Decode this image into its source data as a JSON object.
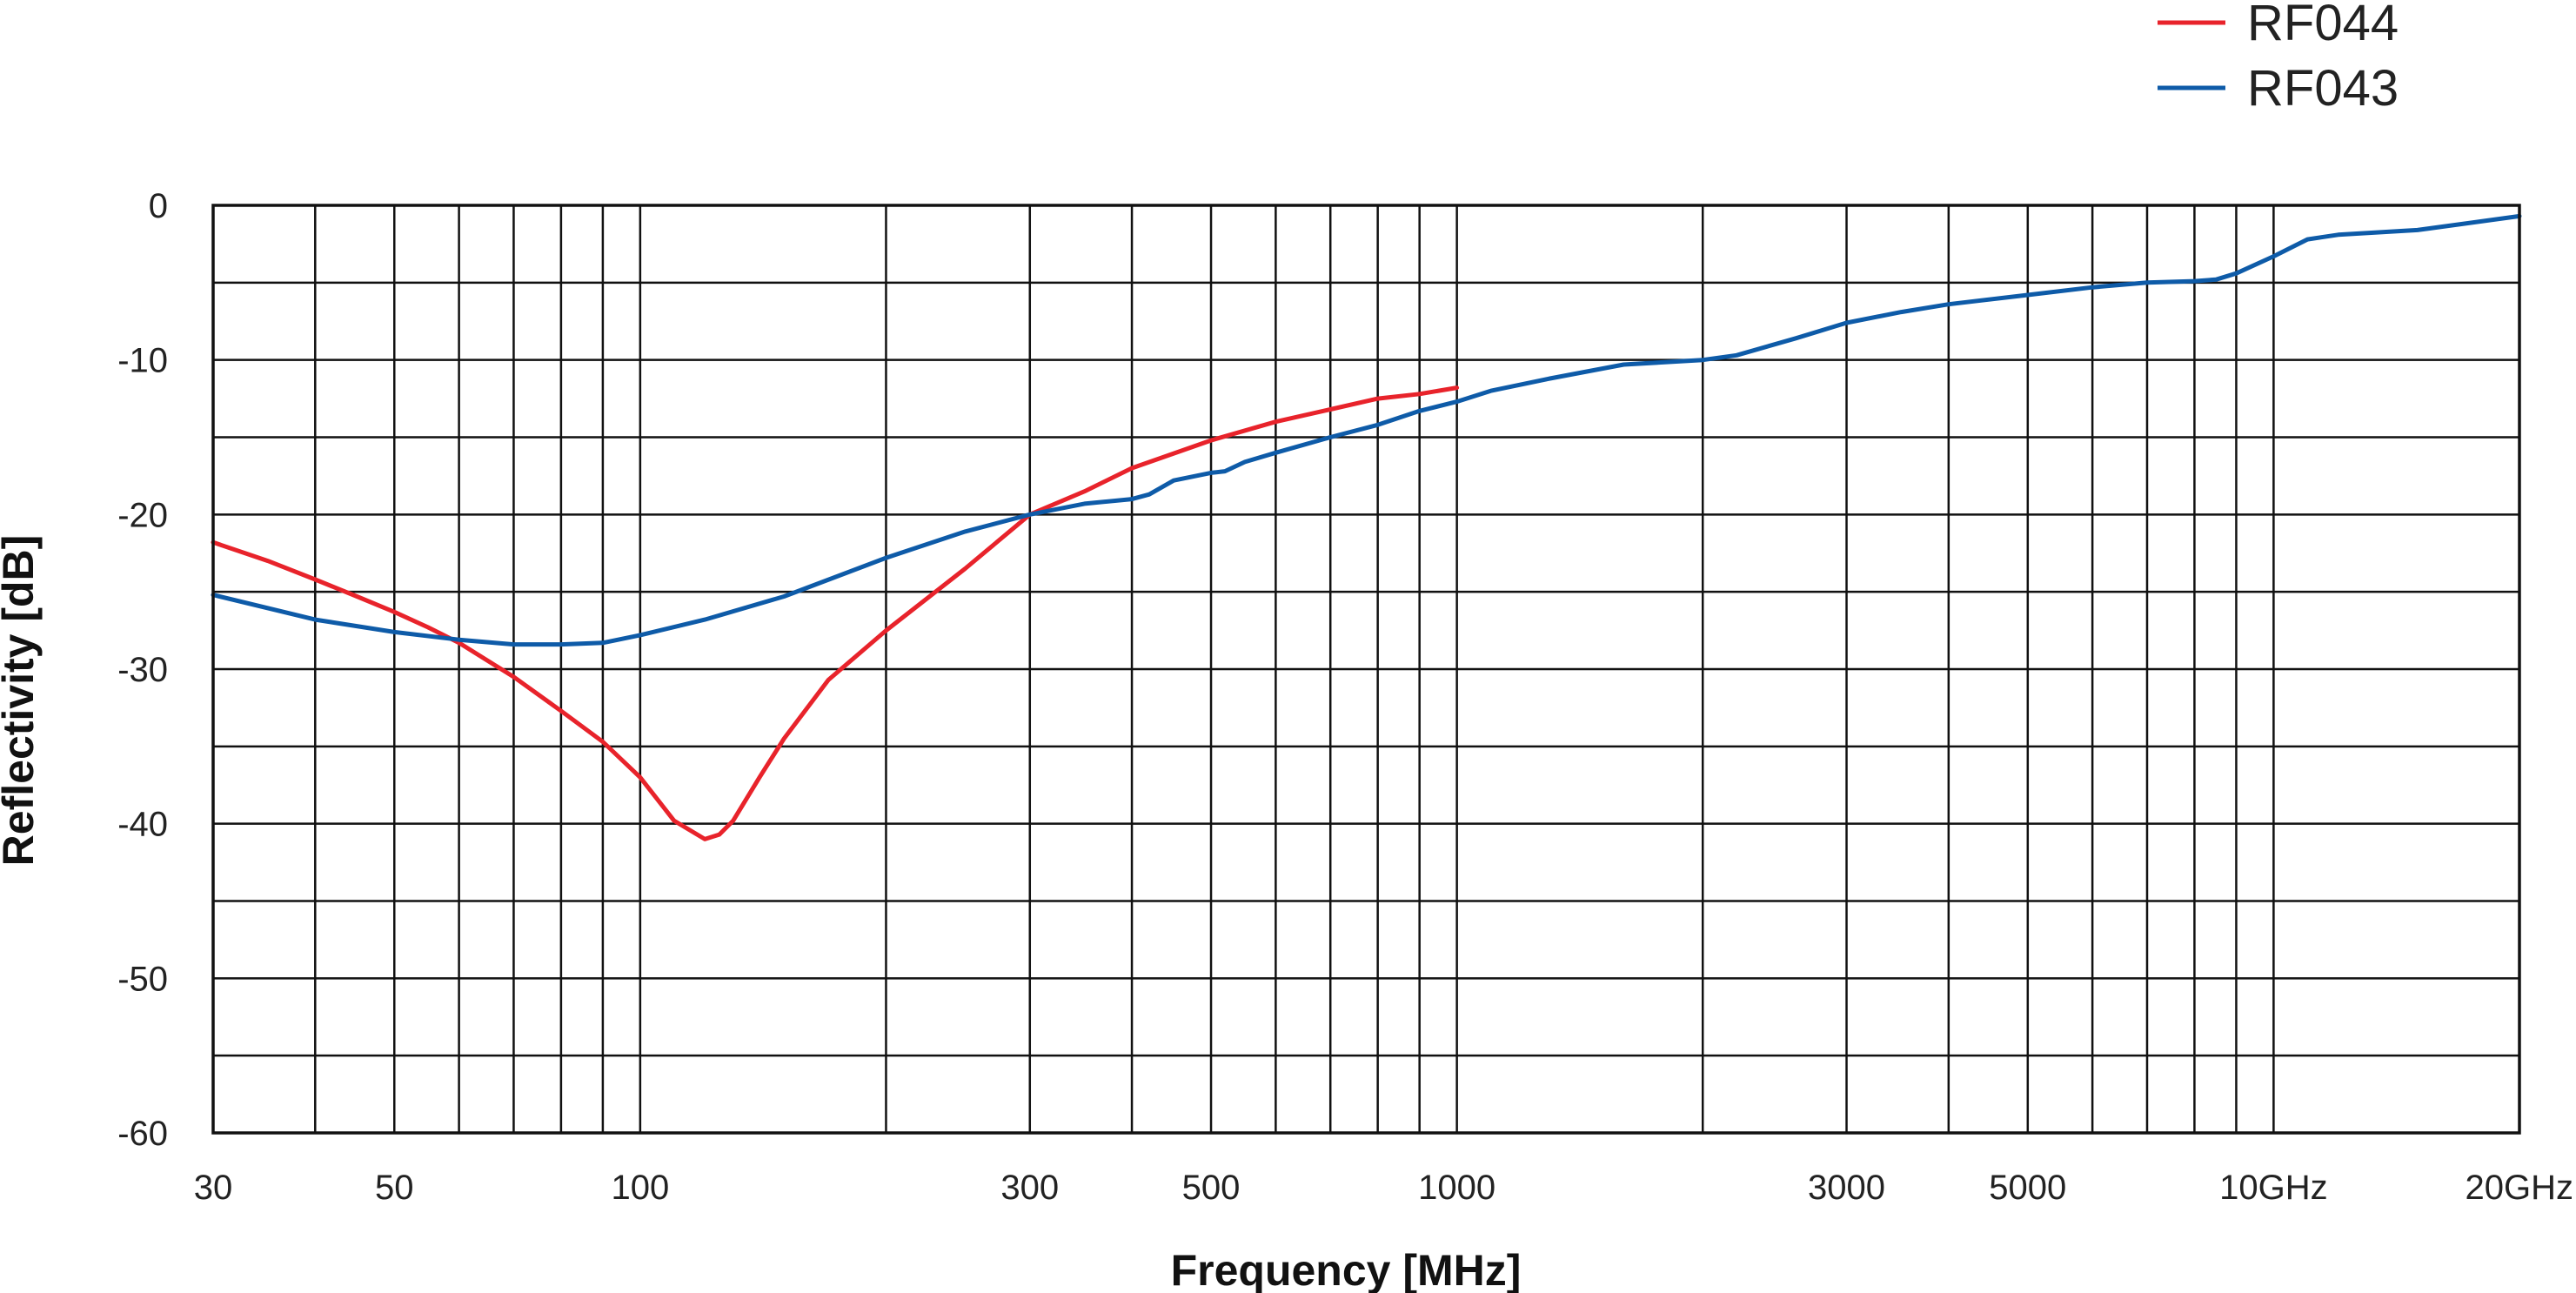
{
  "chart_data": {
    "type": "line",
    "xlabel": "Frequency [MHz]",
    "ylabel": "Reflectivity [dB]",
    "x_scale": "log",
    "xlim": [
      30,
      20000
    ],
    "ylim": [
      -60,
      0
    ],
    "grid": true,
    "legend_position": "top-right",
    "x_gridlines": [
      40,
      50,
      60,
      70,
      80,
      90,
      100,
      200,
      300,
      400,
      500,
      600,
      700,
      800,
      900,
      1000,
      2000,
      3000,
      4000,
      5000,
      6000,
      7000,
      8000,
      9000,
      10000
    ],
    "x_ticks": [
      {
        "value": 30,
        "label": "30"
      },
      {
        "value": 50,
        "label": "50"
      },
      {
        "value": 100,
        "label": "100"
      },
      {
        "value": 300,
        "label": "300"
      },
      {
        "value": 500,
        "label": "500"
      },
      {
        "value": 1000,
        "label": "1000"
      },
      {
        "value": 3000,
        "label": "3000"
      },
      {
        "value": 5000,
        "label": "5000"
      },
      {
        "value": 10000,
        "label": "10GHz"
      },
      {
        "value": 20000,
        "label": "20GHz"
      }
    ],
    "y_gridlines": [
      0,
      -5,
      -10,
      -15,
      -20,
      -25,
      -30,
      -35,
      -40,
      -45,
      -50,
      -55,
      -60
    ],
    "y_ticks": [
      {
        "value": 0,
        "label": "0"
      },
      {
        "value": -10,
        "label": "-10"
      },
      {
        "value": -20,
        "label": "-20"
      },
      {
        "value": -30,
        "label": "-30"
      },
      {
        "value": -40,
        "label": "-40"
      },
      {
        "value": -50,
        "label": "-50"
      },
      {
        "value": -60,
        "label": "-60"
      }
    ],
    "series": [
      {
        "name": "RF044",
        "color": "#e8232b",
        "x": [
          30,
          35,
          40,
          45,
          50,
          55,
          60,
          70,
          80,
          90,
          100,
          110,
          120,
          125,
          130,
          140,
          150,
          170,
          200,
          250,
          300,
          350,
          400,
          500,
          600,
          700,
          800,
          900,
          1000
        ],
        "y": [
          -21.8,
          -23.0,
          -24.2,
          -25.3,
          -26.3,
          -27.3,
          -28.3,
          -30.5,
          -32.7,
          -34.7,
          -37.0,
          -39.8,
          -41.0,
          -40.7,
          -39.8,
          -37.0,
          -34.5,
          -30.7,
          -27.5,
          -23.5,
          -20.0,
          -18.5,
          -17.0,
          -15.2,
          -14.0,
          -13.2,
          -12.5,
          -12.2,
          -11.8
        ]
      },
      {
        "name": "RF043",
        "color": "#0e5ba8",
        "x": [
          30,
          40,
          50,
          60,
          70,
          80,
          90,
          100,
          120,
          150,
          200,
          250,
          300,
          350,
          400,
          420,
          450,
          500,
          520,
          550,
          600,
          700,
          800,
          900,
          1000,
          1100,
          1300,
          1600,
          2000,
          2200,
          2600,
          3000,
          3500,
          4000,
          5000,
          6000,
          7000,
          8000,
          8500,
          9000,
          10000,
          11000,
          12000,
          15000,
          20000
        ],
        "y": [
          -25.2,
          -26.8,
          -27.6,
          -28.1,
          -28.4,
          -28.4,
          -28.3,
          -27.8,
          -26.8,
          -25.3,
          -22.8,
          -21.1,
          -20.0,
          -19.3,
          -19.0,
          -18.7,
          -17.8,
          -17.3,
          -17.2,
          -16.6,
          -16.0,
          -15.0,
          -14.2,
          -13.3,
          -12.7,
          -12.0,
          -11.2,
          -10.3,
          -10.0,
          -9.7,
          -8.6,
          -7.6,
          -6.9,
          -6.4,
          -5.8,
          -5.3,
          -5.0,
          -4.9,
          -4.8,
          -4.4,
          -3.3,
          -2.2,
          -1.9,
          -1.6,
          -0.7
        ]
      }
    ]
  }
}
